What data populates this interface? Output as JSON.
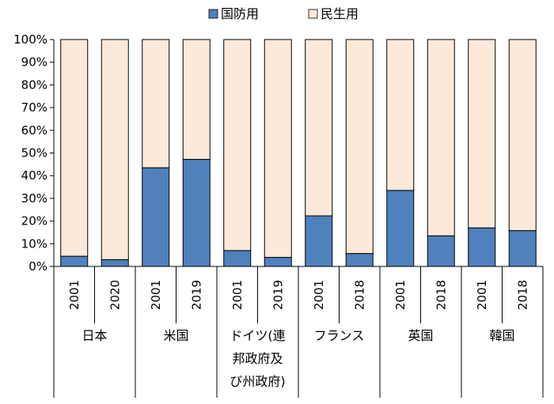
{
  "chart_data": {
    "type": "bar",
    "stacked": true,
    "percent": true,
    "series": [
      {
        "name": "国防用",
        "color": "#4f81bd",
        "values": [
          4.5,
          3.0,
          43.5,
          47.2,
          7.0,
          4.0,
          22.3,
          5.7,
          33.5,
          13.5,
          17.0,
          15.8
        ]
      },
      {
        "name": "民生用",
        "color": "#fde9d9",
        "values": [
          95.5,
          97.0,
          56.5,
          52.8,
          93.0,
          96.0,
          77.7,
          94.3,
          66.5,
          86.5,
          83.0,
          84.2
        ]
      }
    ],
    "groups": [
      {
        "label_lines": [
          "日本"
        ],
        "years": [
          "2001",
          "2020"
        ]
      },
      {
        "label_lines": [
          "米国"
        ],
        "years": [
          "2001",
          "2019"
        ]
      },
      {
        "label_lines": [
          "ドイツ(連",
          "邦政府及",
          "び州政府)"
        ],
        "years": [
          "2001",
          "2019"
        ]
      },
      {
        "label_lines": [
          "フランス"
        ],
        "years": [
          "2001",
          "2018"
        ]
      },
      {
        "label_lines": [
          "英国"
        ],
        "years": [
          "2001",
          "2018"
        ]
      },
      {
        "label_lines": [
          "韓国"
        ],
        "years": [
          "2001",
          "2018"
        ]
      }
    ],
    "yticks": [
      "0%",
      "10%",
      "20%",
      "30%",
      "40%",
      "50%",
      "60%",
      "70%",
      "80%",
      "90%",
      "100%"
    ],
    "ylim": [
      0,
      100
    ],
    "legend_position": "top-center",
    "grid": false
  }
}
